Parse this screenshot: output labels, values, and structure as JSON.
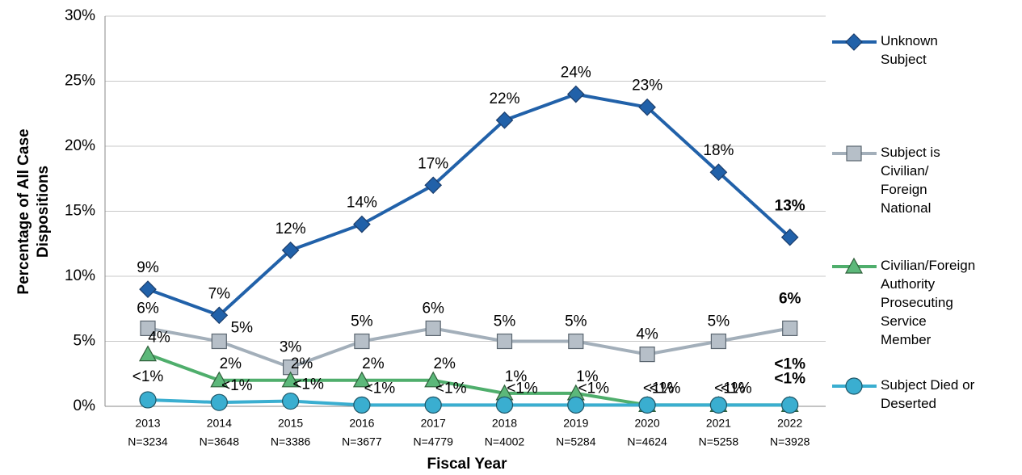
{
  "chart_data": {
    "type": "line",
    "y_axis_title": "Percentage of All Case Dispositions",
    "x_axis_title": "Fiscal Year",
    "categories": [
      "2013",
      "2014",
      "2015",
      "2016",
      "2017",
      "2018",
      "2019",
      "2020",
      "2021",
      "2022"
    ],
    "category_counts": [
      "N=3234",
      "N=3648",
      "N=3386",
      "N=3677",
      "N=4779",
      "N=4002",
      "N=5284",
      "N=4624",
      "N=5258",
      "N=3928"
    ],
    "ylim": [
      0,
      30
    ],
    "yticks": [
      {
        "value": 0,
        "label": "0%"
      },
      {
        "value": 5,
        "label": "5%"
      },
      {
        "value": 10,
        "label": "10%"
      },
      {
        "value": 15,
        "label": "15%"
      },
      {
        "value": 20,
        "label": "20%"
      },
      {
        "value": 25,
        "label": "25%"
      },
      {
        "value": 30,
        "label": "30%"
      }
    ],
    "grid": true,
    "legend": "right",
    "series": [
      {
        "name": "Unknown Subject",
        "color": "#2161a9",
        "marker": "diamond",
        "values": [
          9,
          7,
          12,
          14,
          17,
          22,
          24,
          23,
          18,
          13
        ],
        "value_labels": [
          "9%",
          "7%",
          "12%",
          "14%",
          "17%",
          "22%",
          "24%",
          "23%",
          "18%",
          "13%"
        ]
      },
      {
        "name": "Subject is Civilian/ Foreign National",
        "color": "#a3afba",
        "marker": "square",
        "values": [
          6,
          5,
          3,
          5,
          6,
          5,
          5,
          4,
          5,
          6
        ],
        "value_labels": [
          "6%",
          "5%",
          "3%",
          "5%",
          "6%",
          "5%",
          "5%",
          "4%",
          "5%",
          "6%"
        ]
      },
      {
        "name": "Civilian/Foreign Authority Prosecuting Service Member",
        "color": "#4fae6c",
        "marker": "triangle",
        "values": [
          4,
          2,
          2,
          2,
          2,
          1,
          1,
          0.1,
          0.1,
          0.1
        ],
        "value_labels": [
          "4%",
          "2%",
          "2%",
          "2%",
          "2%",
          "1%",
          "1%",
          "<1%",
          "<1%",
          "<1%"
        ]
      },
      {
        "name": "Subject Died or Deserted",
        "color": "#3aaed0",
        "marker": "circle",
        "values": [
          0.5,
          0.3,
          0.4,
          0.1,
          0.1,
          0.1,
          0.1,
          0.1,
          0.1,
          0.1
        ],
        "value_labels": [
          "<1%",
          "<1%",
          "<1%",
          "<1%",
          "<1%",
          "<1%",
          "<1%",
          "<1%",
          "<1%",
          "<1%"
        ]
      }
    ]
  }
}
